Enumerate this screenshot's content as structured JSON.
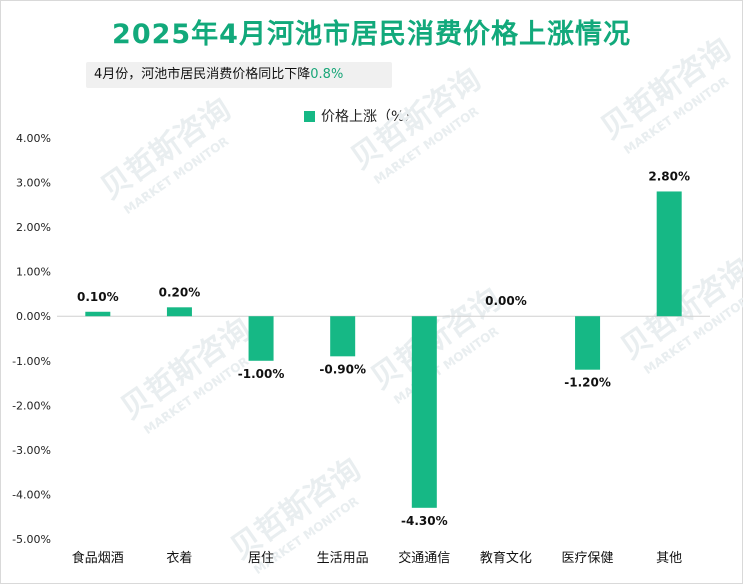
{
  "title": "2025年4月河池市居民消费价格上涨情况",
  "note": {
    "text": "4月份，河池市居民消费价格同比下降",
    "highlight": "0.8%"
  },
  "watermark": {
    "cn": "贝哲斯咨询",
    "en": "MARKET MONITOR"
  },
  "colors": {
    "bar": "#16b885",
    "title": "#12a97b"
  },
  "chart_data": {
    "type": "bar",
    "categories": [
      "食品烟酒",
      "衣着",
      "居住",
      "生活用品",
      "交通通信",
      "教育文化",
      "医疗保健",
      "其他"
    ],
    "series": [
      {
        "name": "价格上涨（%）",
        "values": [
          0.1,
          0.2,
          -1.0,
          -0.9,
          -4.3,
          0.0,
          -1.2,
          2.8
        ]
      }
    ],
    "value_labels": [
      "0.10%",
      "0.20%",
      "-1.00%",
      "-0.90%",
      "-4.30%",
      "0.00%",
      "-1.20%",
      "2.80%"
    ],
    "ylim": [
      -5,
      4
    ],
    "yticks": [
      4,
      3,
      2,
      1,
      0,
      -1,
      -2,
      -3,
      -4,
      -5
    ],
    "ytick_labels": [
      "4.00%",
      "3.00%",
      "2.00%",
      "1.00%",
      "0.00%",
      "-1.00%",
      "-2.00%",
      "-3.00%",
      "-4.00%",
      "-5.00%"
    ],
    "legend_position": "top-center",
    "grid": false
  }
}
